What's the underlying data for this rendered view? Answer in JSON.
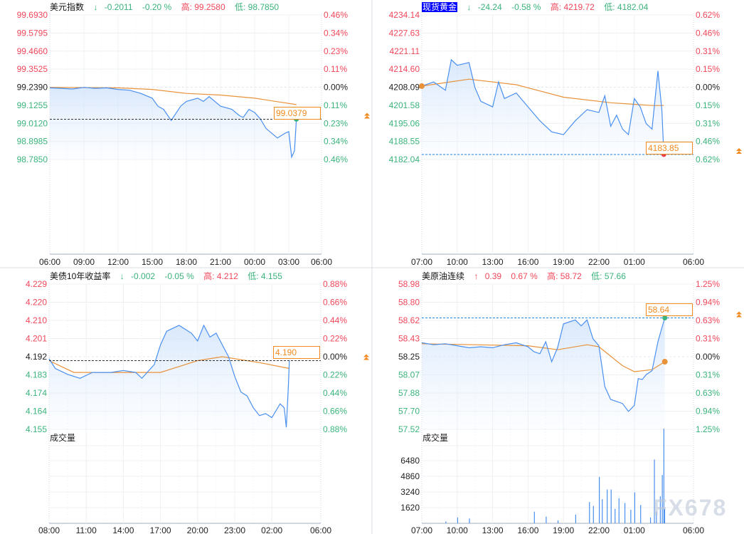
{
  "colors": {
    "up": "#f0475a",
    "down": "#3bb37c",
    "line": "#4a90f0",
    "ma": "#e8923a",
    "box": "#f08a1c"
  },
  "panels": [
    {
      "title": "美元指数",
      "highlight": false,
      "arrow": "↓",
      "direction": "down",
      "change": "-0.2011",
      "pct": "-0.20 %",
      "high_label": "高:",
      "high": "99.2580",
      "low_label": "低:",
      "low": "98.7850",
      "y_ticks": [
        "99.6930",
        "99.5795",
        "99.4660",
        "99.3525",
        "99.2390",
        "99.1255",
        "99.0120",
        "98.8985",
        "98.7850"
      ],
      "pct_ticks": [
        "0.46%",
        "0.34%",
        "0.23%",
        "0.11%",
        "0.00%",
        "0.11%",
        "0.23%",
        "0.34%",
        "0.46%"
      ],
      "x_ticks": [
        "06:00",
        "09:00",
        "12:00",
        "15:00",
        "18:00",
        "21:00",
        "00:00",
        "03:00",
        "06:00"
      ],
      "last_price": "99.0379",
      "last_value": 99.0379,
      "last_dot": "green",
      "line": [
        [
          "06:00",
          99.235
        ],
        [
          "07:00",
          99.232
        ],
        [
          "08:00",
          99.228
        ],
        [
          "09:00",
          99.238
        ],
        [
          "10:00",
          99.232
        ],
        [
          "11:00",
          99.235
        ],
        [
          "12:00",
          99.225
        ],
        [
          "13:00",
          99.22
        ],
        [
          "14:00",
          99.2
        ],
        [
          "15:00",
          99.17
        ],
        [
          "15:30",
          99.12
        ],
        [
          "16:00",
          99.1
        ],
        [
          "16:40",
          99.03
        ],
        [
          "17:30",
          99.12
        ],
        [
          "18:00",
          99.15
        ],
        [
          "19:00",
          99.17
        ],
        [
          "19:30",
          99.15
        ],
        [
          "20:00",
          99.18
        ],
        [
          "21:00",
          99.12
        ],
        [
          "22:00",
          99.1
        ],
        [
          "22:40",
          99.06
        ],
        [
          "23:00",
          99.05
        ],
        [
          "23:30",
          99.1
        ],
        [
          "00:00",
          99.08
        ],
        [
          "00:30",
          99.04
        ],
        [
          "01:00",
          98.98
        ],
        [
          "01:30",
          98.95
        ],
        [
          "02:00",
          98.92
        ],
        [
          "02:40",
          98.95
        ],
        [
          "03:00",
          98.96
        ],
        [
          "03:15",
          98.8
        ],
        [
          "03:30",
          98.84
        ],
        [
          "03:40",
          99.0379
        ]
      ],
      "ma": [
        [
          "06:00",
          99.238
        ],
        [
          "12:00",
          99.235
        ],
        [
          "15:00",
          99.225
        ],
        [
          "18:00",
          99.2
        ],
        [
          "21:00",
          99.19
        ],
        [
          "00:00",
          99.17
        ],
        [
          "03:40",
          99.13
        ]
      ]
    },
    {
      "title": "现货黄金",
      "highlight": true,
      "arrow": "↓",
      "direction": "down",
      "change": "-24.24",
      "pct": "-0.58 %",
      "high_label": "高:",
      "high": "4219.72",
      "low_label": "低:",
      "low": "4182.04",
      "y_ticks": [
        "4234.14",
        "4227.63",
        "4221.11",
        "4214.60",
        "4208.09",
        "4201.58",
        "4195.06",
        "4188.55",
        "4182.04"
      ],
      "pct_ticks": [
        "0.62%",
        "0.46%",
        "0.31%",
        "0.15%",
        "0.00%",
        "0.15%",
        "0.31%",
        "0.46%",
        "0.62%"
      ],
      "x_ticks": [
        "07:00",
        "10:00",
        "13:00",
        "16:00",
        "19:00",
        "22:00",
        "01:00",
        "06:00"
      ],
      "last_price": "4183.85",
      "last_value": 4183.85,
      "last_dot": "red",
      "line": [
        [
          "07:00",
          4208.5
        ],
        [
          "08:00",
          4210
        ],
        [
          "09:00",
          4207
        ],
        [
          "09:30",
          4218
        ],
        [
          "10:00",
          4216
        ],
        [
          "11:00",
          4217
        ],
        [
          "11:30",
          4208
        ],
        [
          "12:00",
          4203
        ],
        [
          "13:00",
          4201
        ],
        [
          "13:30",
          4210
        ],
        [
          "14:00",
          4204
        ],
        [
          "15:00",
          4206
        ],
        [
          "16:00",
          4201
        ],
        [
          "17:00",
          4196
        ],
        [
          "18:00",
          4192
        ],
        [
          "19:00",
          4191
        ],
        [
          "20:00",
          4196
        ],
        [
          "21:00",
          4200
        ],
        [
          "22:00",
          4199
        ],
        [
          "22:30",
          4205
        ],
        [
          "23:00",
          4194
        ],
        [
          "23:30",
          4198
        ],
        [
          "00:00",
          4193
        ],
        [
          "00:30",
          4191
        ],
        [
          "01:00",
          4204
        ],
        [
          "01:30",
          4201
        ],
        [
          "02:00",
          4195
        ],
        [
          "02:30",
          4193
        ],
        [
          "03:00",
          4214
        ],
        [
          "03:20",
          4200
        ],
        [
          "03:30",
          4183.85
        ]
      ],
      "ma": [
        [
          "07:00",
          4208.5
        ],
        [
          "11:00",
          4211
        ],
        [
          "15:00",
          4209
        ],
        [
          "19:00",
          4204.5
        ],
        [
          "23:00",
          4202.5
        ],
        [
          "02:30",
          4201.5
        ],
        [
          "03:30",
          4201.5
        ]
      ]
    },
    {
      "title": "美债10年收益率",
      "highlight": false,
      "arrow": "↓",
      "direction": "down",
      "change": "-0.002",
      "pct": "-0.05 %",
      "high_label": "高:",
      "high": "4.212",
      "low_label": "低:",
      "low": "4.155",
      "y_ticks": [
        "4.229",
        "4.220",
        "4.210",
        "4.201",
        "4.192",
        "4.183",
        "4.174",
        "4.164",
        "4.155"
      ],
      "pct_ticks": [
        "0.88%",
        "0.66%",
        "0.44%",
        "0.22%",
        "0.00%",
        "0.22%",
        "0.44%",
        "0.66%",
        "0.88%"
      ],
      "x_ticks": [
        "08:00",
        "11:00",
        "14:00",
        "17:00",
        "20:00",
        "23:00",
        "02:00",
        "06:00"
      ],
      "last_price": "4.190",
      "last_value": 4.19,
      "last_dot": "",
      "volume_label": "成交量",
      "volume_ticks": [],
      "volume": [],
      "line": [
        [
          "08:00",
          4.191
        ],
        [
          "08:30",
          4.186
        ],
        [
          "09:30",
          4.183
        ],
        [
          "10:30",
          4.181
        ],
        [
          "11:30",
          4.184
        ],
        [
          "13:00",
          4.184
        ],
        [
          "14:00",
          4.185
        ],
        [
          "15:00",
          4.184
        ],
        [
          "15:30",
          4.181
        ],
        [
          "16:30",
          4.188
        ],
        [
          "17:00",
          4.198
        ],
        [
          "17:30",
          4.205
        ],
        [
          "18:30",
          4.208
        ],
        [
          "19:30",
          4.204
        ],
        [
          "20:00",
          4.2
        ],
        [
          "20:30",
          4.208
        ],
        [
          "21:00",
          4.202
        ],
        [
          "21:30",
          4.204
        ],
        [
          "22:00",
          4.198
        ],
        [
          "22:30",
          4.192
        ],
        [
          "23:00",
          4.182
        ],
        [
          "23:30",
          4.174
        ],
        [
          "00:00",
          4.172
        ],
        [
          "00:30",
          4.166
        ],
        [
          "01:00",
          4.162
        ],
        [
          "01:30",
          4.163
        ],
        [
          "02:00",
          4.161
        ],
        [
          "02:40",
          4.168
        ],
        [
          "03:00",
          4.166
        ],
        [
          "03:10",
          4.156
        ],
        [
          "03:20",
          4.177
        ],
        [
          "03:25",
          4.19
        ]
      ],
      "ma": [
        [
          "08:00",
          4.19
        ],
        [
          "10:00",
          4.184
        ],
        [
          "17:00",
          4.184
        ],
        [
          "20:00",
          4.19
        ],
        [
          "22:00",
          4.192
        ],
        [
          "01:00",
          4.189
        ],
        [
          "03:25",
          4.186
        ]
      ]
    },
    {
      "title": "美原油连续",
      "highlight": false,
      "arrow": "↑",
      "direction": "up",
      "change": "0.39",
      "pct": "0.67 %",
      "high_label": "高:",
      "high": "58.72",
      "low_label": "低:",
      "low": "57.66",
      "y_ticks": [
        "58.98",
        "58.80",
        "58.62",
        "58.43",
        "58.25",
        "58.07",
        "57.88",
        "57.70",
        "57.52"
      ],
      "pct_ticks": [
        "1.25%",
        "0.94%",
        "0.63%",
        "0.31%",
        "0.00%",
        "0.31%",
        "0.63%",
        "0.94%",
        "1.25%"
      ],
      "x_ticks": [
        "07:00",
        "10:00",
        "13:00",
        "16:00",
        "19:00",
        "22:00",
        "01:00",
        "06:00"
      ],
      "last_price": "58.64",
      "last_value": 58.64,
      "last_dot": "green",
      "volume_label": "成交量",
      "volume_ticks": [
        "6480",
        "4860",
        "3240",
        "1620"
      ],
      "volume": [
        [
          "09:00",
          200
        ],
        [
          "10:00",
          600
        ],
        [
          "11:00",
          500
        ],
        [
          "16:30",
          1200
        ],
        [
          "17:30",
          700
        ],
        [
          "18:30",
          300
        ],
        [
          "20:00",
          900
        ],
        [
          "21:10",
          2200
        ],
        [
          "21:30",
          1800
        ],
        [
          "22:00",
          4800
        ],
        [
          "22:15",
          2500
        ],
        [
          "22:40",
          3500
        ],
        [
          "23:00",
          3500
        ],
        [
          "23:20",
          1500
        ],
        [
          "23:40",
          2600
        ],
        [
          "00:10",
          2100
        ],
        [
          "00:40",
          1400
        ],
        [
          "01:00",
          3200
        ],
        [
          "01:30",
          1900
        ],
        [
          "02:20",
          600
        ],
        [
          "02:40",
          6600
        ],
        [
          "02:50",
          1200
        ],
        [
          "03:10",
          2800
        ],
        [
          "03:20",
          5000
        ],
        [
          "03:28",
          9800
        ],
        [
          "03:32",
          1500
        ]
      ],
      "line": [
        [
          "07:00",
          58.39
        ],
        [
          "08:00",
          58.37
        ],
        [
          "09:00",
          58.38
        ],
        [
          "10:00",
          58.36
        ],
        [
          "11:00",
          58.34
        ],
        [
          "12:00",
          58.35
        ],
        [
          "13:00",
          58.34
        ],
        [
          "14:00",
          58.37
        ],
        [
          "15:00",
          58.39
        ],
        [
          "16:00",
          58.35
        ],
        [
          "16:30",
          58.3
        ],
        [
          "17:00",
          58.28
        ],
        [
          "17:30",
          58.4
        ],
        [
          "18:00",
          58.2
        ],
        [
          "18:30",
          58.34
        ],
        [
          "19:00",
          58.58
        ],
        [
          "20:00",
          58.62
        ],
        [
          "20:30",
          58.56
        ],
        [
          "21:00",
          58.62
        ],
        [
          "21:30",
          58.43
        ],
        [
          "22:00",
          58.36
        ],
        [
          "22:30",
          57.95
        ],
        [
          "23:00",
          57.82
        ],
        [
          "00:00",
          57.78
        ],
        [
          "00:30",
          57.7
        ],
        [
          "01:00",
          57.76
        ],
        [
          "01:20",
          58.03
        ],
        [
          "01:40",
          58.02
        ],
        [
          "02:00",
          58.07
        ],
        [
          "02:30",
          58.11
        ],
        [
          "03:00",
          58.4
        ],
        [
          "03:20",
          58.54
        ],
        [
          "03:35",
          58.64
        ]
      ],
      "ma": [
        [
          "07:00",
          58.38
        ],
        [
          "16:00",
          58.36
        ],
        [
          "18:30",
          58.32
        ],
        [
          "21:00",
          58.37
        ],
        [
          "22:00",
          58.35
        ],
        [
          "00:00",
          58.16
        ],
        [
          "01:00",
          58.1
        ],
        [
          "02:30",
          58.12
        ],
        [
          "03:35",
          58.2
        ]
      ]
    }
  ],
  "watermark": "FX678"
}
